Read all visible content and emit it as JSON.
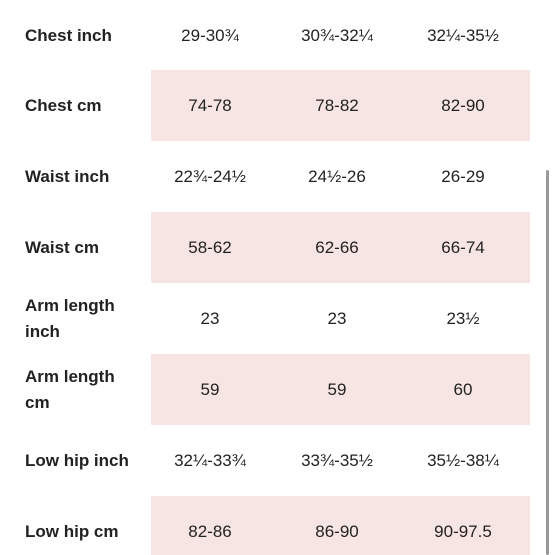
{
  "size_table": {
    "rows": [
      {
        "label": "Chest inch",
        "values": [
          "29-30¾",
          "30¾-32¼",
          "32¼-35½"
        ],
        "shaded": false
      },
      {
        "label": "Chest cm",
        "values": [
          "74-78",
          "78-82",
          "82-90"
        ],
        "shaded": true
      },
      {
        "label": "Waist inch",
        "values": [
          "22¾-24½",
          "24½-26",
          "26-29"
        ],
        "shaded": false
      },
      {
        "label": "Waist cm",
        "values": [
          "58-62",
          "62-66",
          "66-74"
        ],
        "shaded": true
      },
      {
        "label": "Arm length inch",
        "values": [
          "23",
          "23",
          "23½"
        ],
        "shaded": false
      },
      {
        "label": "Arm length cm",
        "values": [
          "59",
          "59",
          "60"
        ],
        "shaded": true
      },
      {
        "label": "Low hip inch",
        "values": [
          "32¼-33¾",
          "33¾-35½",
          "35½-38¼"
        ],
        "shaded": false
      },
      {
        "label": "Low hip cm",
        "values": [
          "82-86",
          "86-90",
          "90-97.5"
        ],
        "shaded": true
      }
    ]
  },
  "colors": {
    "row_shade": "#f7e5e3",
    "text": "#222222",
    "scrollbar": "#9a9a9a"
  }
}
